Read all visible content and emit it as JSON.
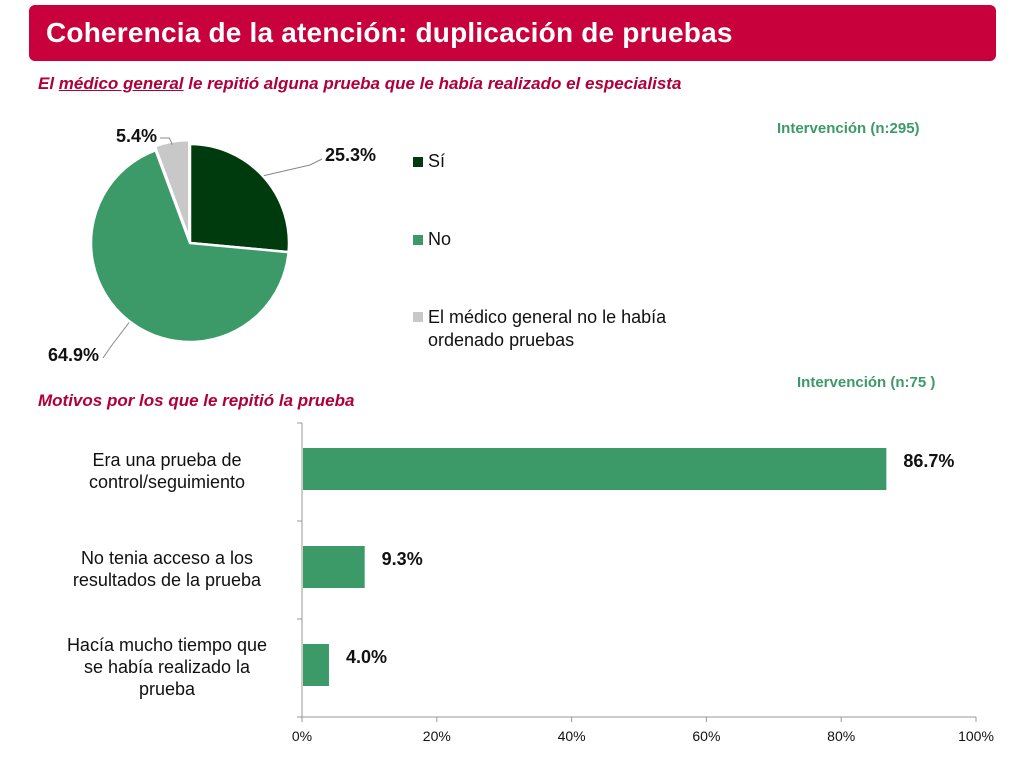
{
  "title": "Coherencia de la atención: duplicación de pruebas",
  "pie_subtitle": {
    "pre": "El ",
    "underlined": "médico general",
    "post": " le repitió alguna prueba que le había realizado el especialista"
  },
  "pie_sample": "Intervención (n:295)",
  "bar_subtitle": "Motivos por los que le repitió la prueba",
  "bar_sample": "Intervención (n:75 )",
  "colors": {
    "brand": "#c8003c",
    "si": "#003b0e",
    "no": "#3c9a68",
    "none": "#c8c8c8",
    "bar": "#3c9a68"
  },
  "chart_data": [
    {
      "type": "pie",
      "slices": [
        {
          "label": "Sí",
          "value": 25.3,
          "display": "25.3%",
          "color": "#003b0e"
        },
        {
          "label": "No",
          "value": 64.9,
          "display": "64.9%",
          "color": "#3c9a68"
        },
        {
          "label": "El médico general no le había ordenado pruebas",
          "value": 5.4,
          "display": "5.4%",
          "color": "#c8c8c8"
        }
      ],
      "legend": [
        {
          "line1": "Sí",
          "line2": "",
          "color": "#003b0e"
        },
        {
          "line1": "No",
          "line2": "",
          "color": "#3c9a68"
        },
        {
          "line1": "El médico general no le había",
          "line2": "ordenado pruebas",
          "color": "#c8c8c8"
        }
      ],
      "legend_position": "right"
    },
    {
      "type": "bar",
      "orientation": "horizontal",
      "categories": [
        {
          "line1": "Era una prueba de",
          "line2": "control/seguimiento",
          "line3": ""
        },
        {
          "line1": "No tenia acceso a los",
          "line2": "resultados de la prueba",
          "line3": ""
        },
        {
          "line1": "Hacía mucho tiempo que",
          "line2": "se había realizado la",
          "line3": "prueba"
        }
      ],
      "values": [
        86.7,
        9.3,
        4.0
      ],
      "value_labels": [
        "86.7%",
        "9.3%",
        "4.0%"
      ],
      "xlim": [
        0,
        100
      ],
      "x_ticks": [
        "0%",
        "20%",
        "40%",
        "60%",
        "80%",
        "100%"
      ],
      "grid": false
    }
  ]
}
